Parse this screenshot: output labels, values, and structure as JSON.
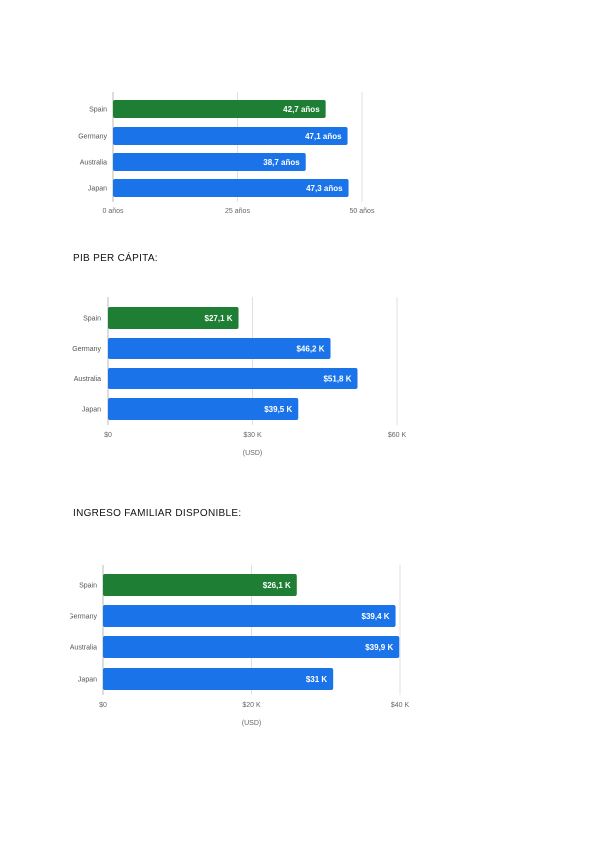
{
  "headings": [
    "PIB PER CÁPITA:",
    "INGRESO FAMILIAR DISPONIBLE:"
  ],
  "colors": {
    "highlight": "#1e7e34",
    "bar": "#1a73e8",
    "grid": "#e0e0e0"
  },
  "chart_data": [
    {
      "type": "bar",
      "orientation": "horizontal",
      "categories": [
        "Spain",
        "Germany",
        "Australia",
        "Japan"
      ],
      "values": [
        42.7,
        47.1,
        38.7,
        47.3
      ],
      "data_labels": [
        "42,7 años",
        "47,1 años",
        "38,7 años",
        "47,3 años"
      ],
      "xlim": [
        0,
        50
      ],
      "tick_labels": [
        "0 años",
        "25 años",
        "50 años"
      ],
      "xlabel": "",
      "grid": true,
      "highlighted_category": "Spain"
    },
    {
      "type": "bar",
      "orientation": "horizontal",
      "categories": [
        "Spain",
        "Germany",
        "Australia",
        "Japan"
      ],
      "values": [
        27.1,
        46.2,
        51.8,
        39.5
      ],
      "data_labels": [
        "$27,1 K",
        "$46,2 K",
        "$51,8 K",
        "$39,5 K"
      ],
      "xlim": [
        0,
        60
      ],
      "tick_labels": [
        "$0",
        "$30 K",
        "$60 K"
      ],
      "xlabel": "(USD)",
      "grid": true,
      "highlighted_category": "Spain"
    },
    {
      "type": "bar",
      "orientation": "horizontal",
      "categories": [
        "Spain",
        "Germany",
        "Australia",
        "Japan"
      ],
      "values": [
        26.1,
        39.4,
        39.9,
        31
      ],
      "data_labels": [
        "$26,1 K",
        "$39,4 K",
        "$39,9 K",
        "$31 K"
      ],
      "xlim": [
        0,
        40
      ],
      "tick_labels": [
        "$0",
        "$20 K",
        "$40 K"
      ],
      "xlabel": "(USD)",
      "grid": true,
      "highlighted_category": "Spain"
    }
  ]
}
